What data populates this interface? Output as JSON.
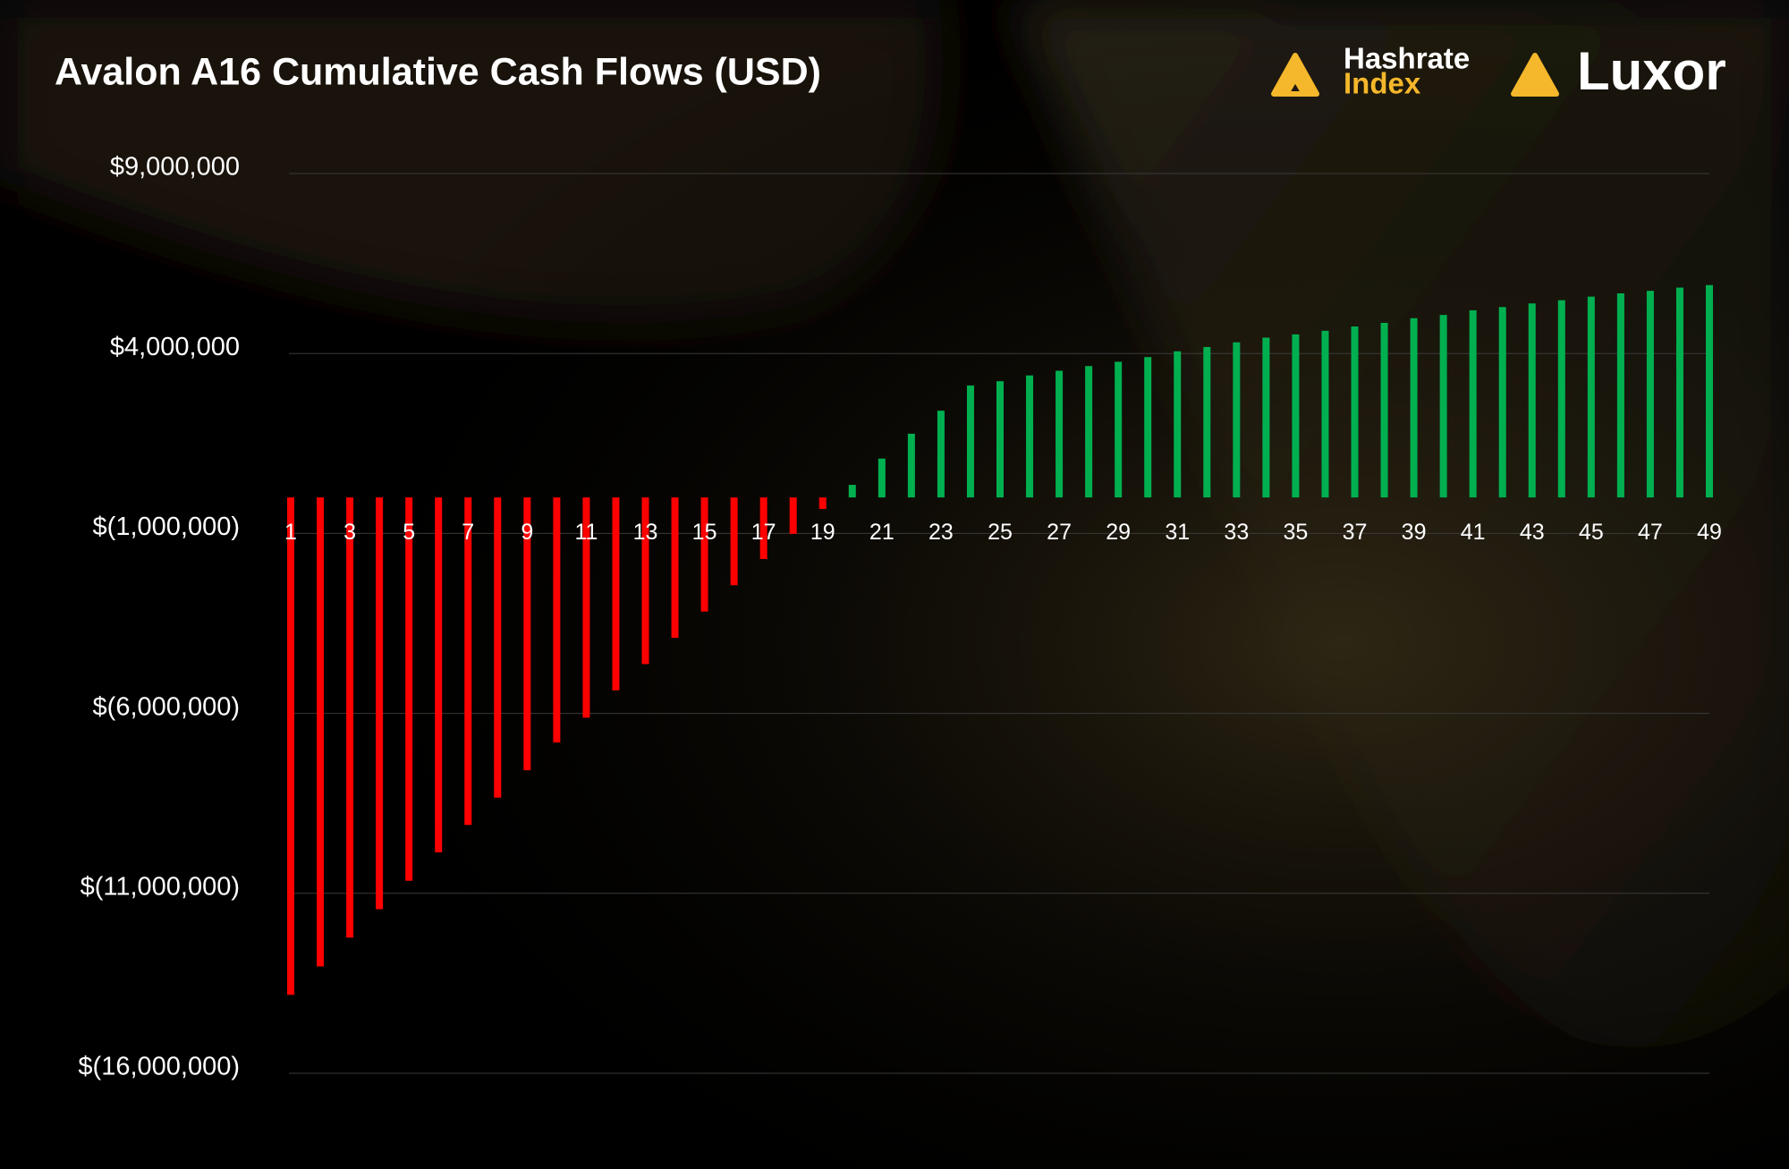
{
  "chart_data": {
    "type": "bar",
    "title": "Avalon A16 Cumulative Cash Flows (USD)",
    "categories": [
      "1",
      null,
      "3",
      null,
      "5",
      null,
      "7",
      null,
      "9",
      null,
      "11",
      null,
      "13",
      null,
      "15",
      null,
      "17",
      null,
      "19",
      null,
      "21",
      null,
      "23",
      null,
      "25",
      null,
      "27",
      null,
      "29",
      null,
      "31",
      null,
      "33",
      null,
      "35",
      null,
      "37",
      null,
      "39",
      null,
      "41",
      null,
      "43",
      null,
      "45",
      null,
      "47",
      null,
      "49"
    ],
    "values": [
      -13820000,
      -13030000,
      -12230000,
      -11440000,
      -10650000,
      -9860000,
      -9100000,
      -8340000,
      -7580000,
      -6810000,
      -6120000,
      -5360000,
      -4630000,
      -3900000,
      -3170000,
      -2440000,
      -1710000,
      -1010000,
      -320000,
      350000,
      1080000,
      1770000,
      2410000,
      3110000,
      3230000,
      3390000,
      3520000,
      3650000,
      3770000,
      3900000,
      4060000,
      4180000,
      4310000,
      4440000,
      4530000,
      4630000,
      4750000,
      4850000,
      4980000,
      5070000,
      5200000,
      5290000,
      5390000,
      5480000,
      5580000,
      5670000,
      5740000,
      5830000,
      5900000
    ],
    "color_positive": "#00b050",
    "color_negative": "#ff0000",
    "ylim": [
      -16000000,
      9000000
    ],
    "yticks": [
      {
        "value": 9000000,
        "label": "$9,000,000"
      },
      {
        "value": 4000000,
        "label": "$4,000,000"
      },
      {
        "value": -1000000,
        "label": "$(1,000,000)"
      },
      {
        "value": -6000000,
        "label": "$(6,000,000)"
      },
      {
        "value": -11000000,
        "label": "$(11,000,000)"
      },
      {
        "value": -16000000,
        "label": "$(16,000,000)"
      }
    ],
    "grid": true
  },
  "logos": {
    "hashrate_line1": "Hashrate",
    "hashrate_line2": "Index",
    "luxor": "Luxor"
  }
}
